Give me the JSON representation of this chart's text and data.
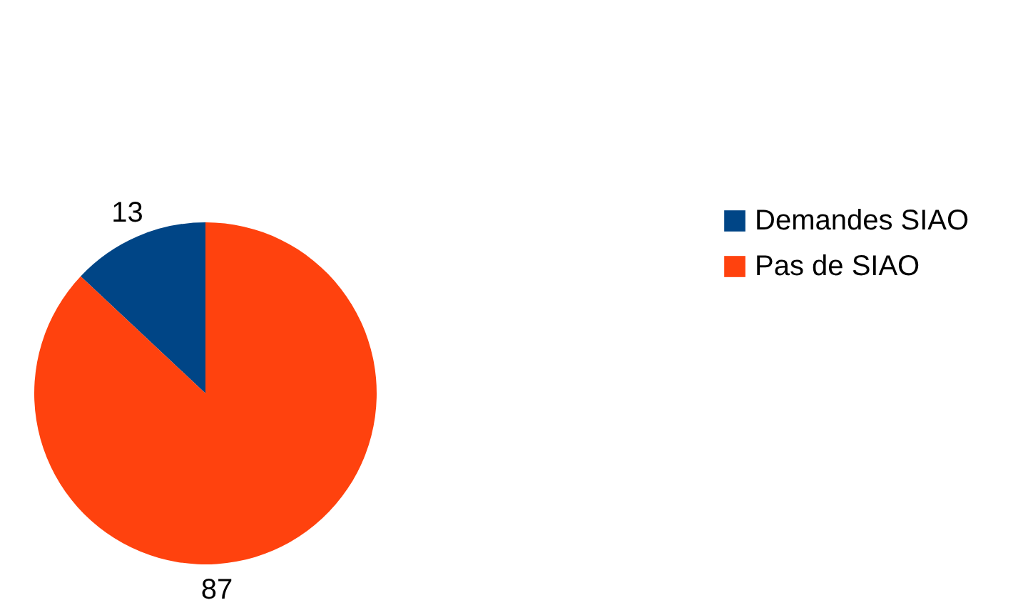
{
  "chart_data": {
    "type": "pie",
    "categories": [
      "Demandes SIAO",
      "Pas de SIAO"
    ],
    "values": [
      13,
      87
    ],
    "colors": [
      "#004586",
      "#ff420e"
    ],
    "data_labels": true,
    "legend": "right"
  }
}
